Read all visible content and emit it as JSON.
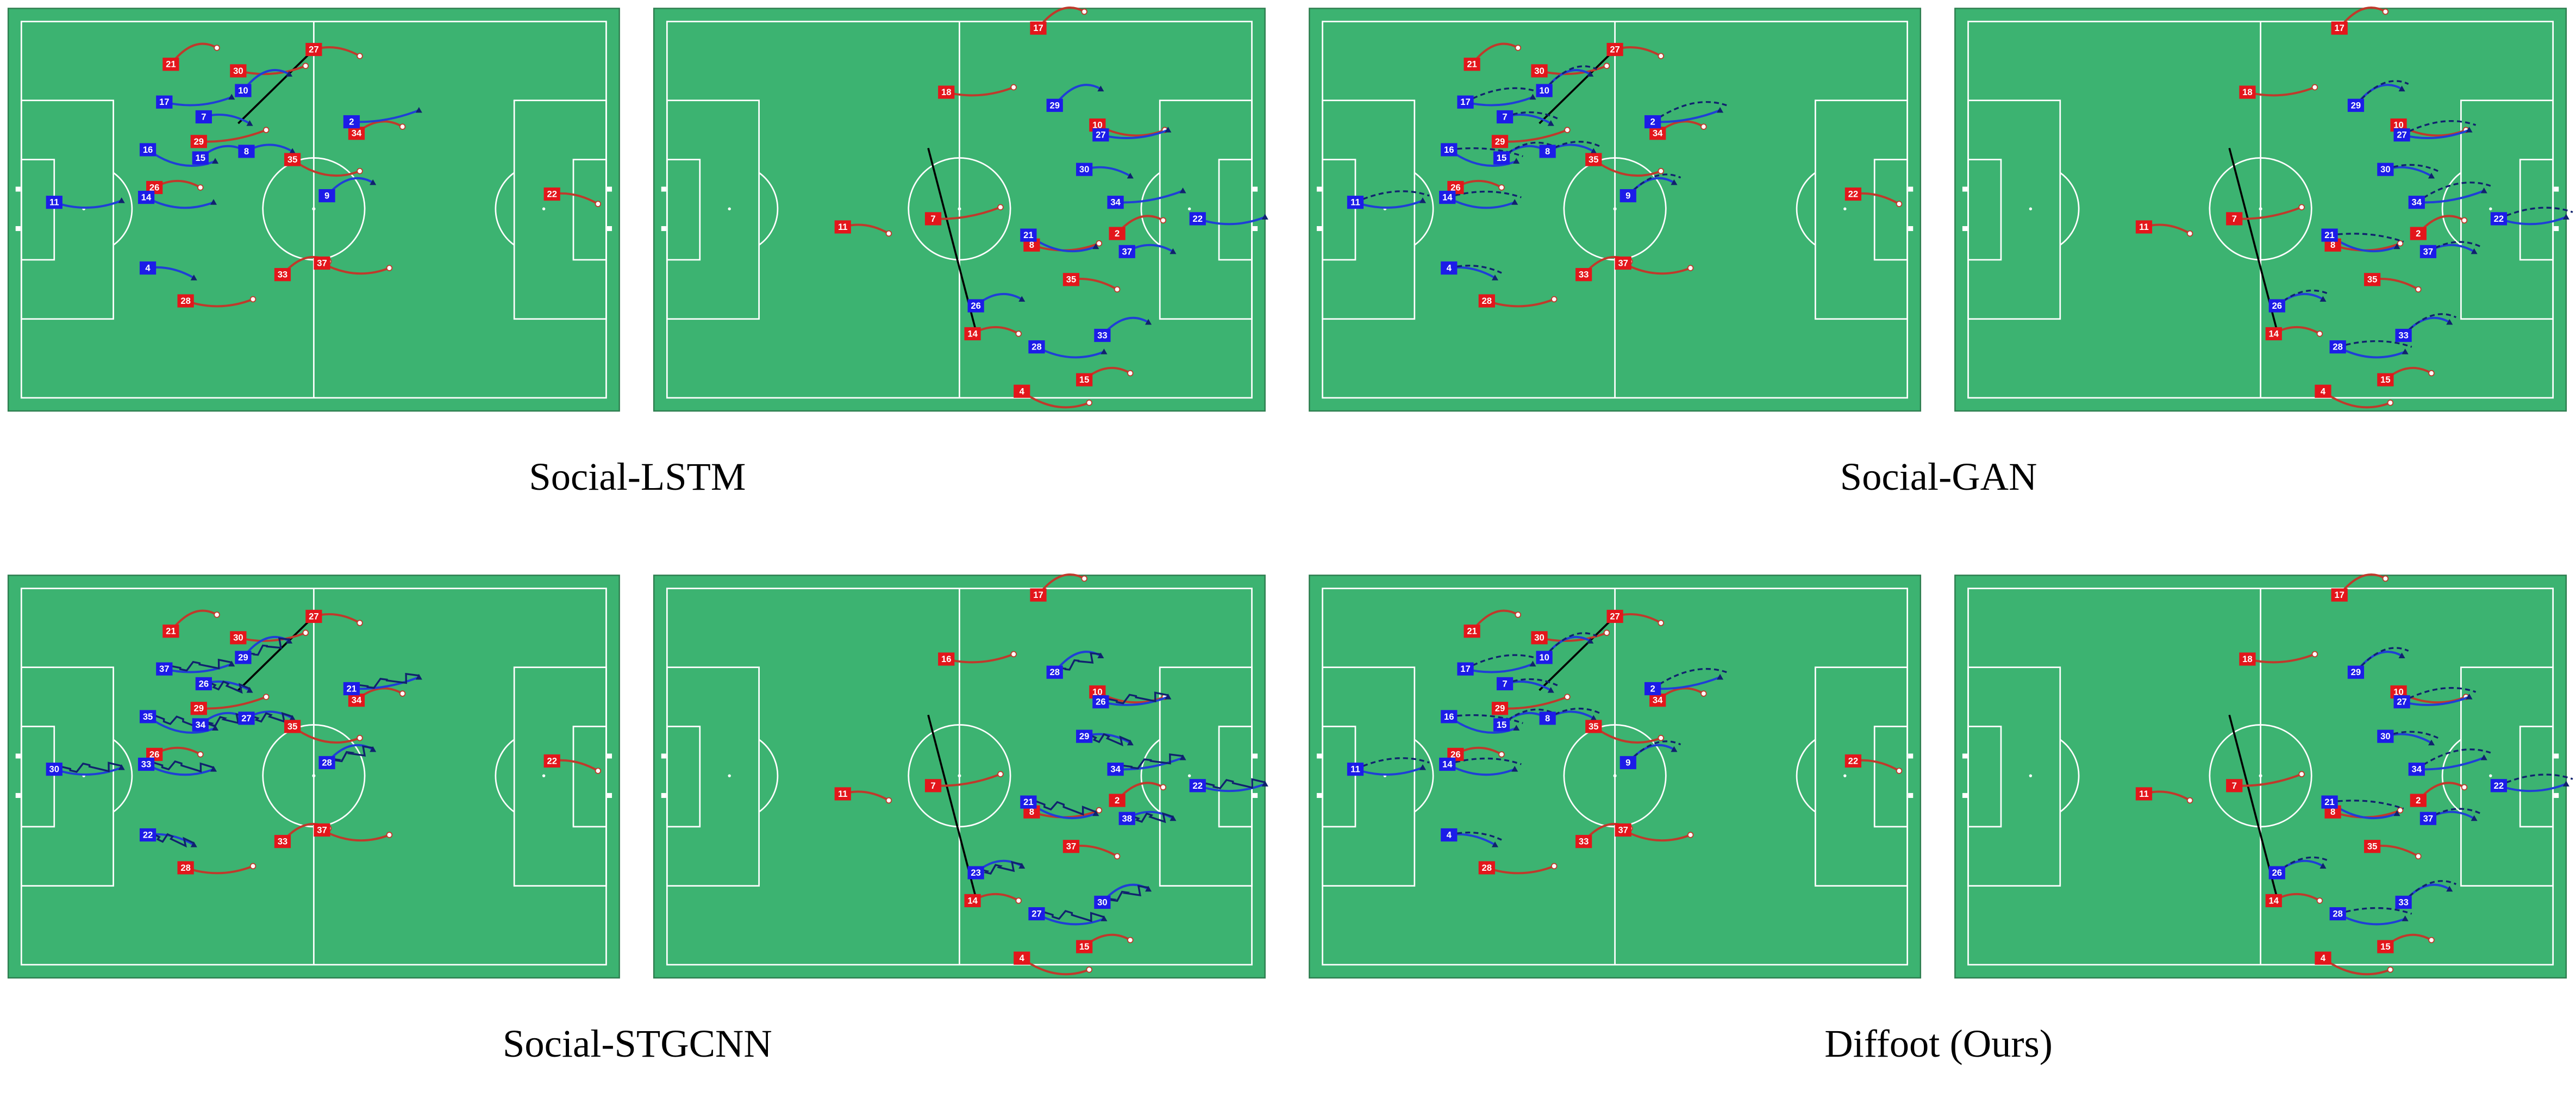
{
  "figure": {
    "panels": [
      {
        "caption": "Social-LSTM",
        "pitches": [
          {
            "red": [
              "21",
              "30",
              "27",
              "29",
              "26",
              "35",
              "34",
              "37",
              "33",
              "28",
              "22"
            ],
            "blue": [
              "10",
              "17",
              "7",
              "2",
              "8",
              "16",
              "15",
              "14",
              "9",
              "11",
              "4"
            ]
          },
          {
            "red": [
              "17",
              "18",
              "11",
              "7",
              "14",
              "4",
              "15",
              "10",
              "2",
              "8",
              "35"
            ],
            "blue": [
              "29",
              "27",
              "30",
              "34",
              "37",
              "21",
              "26",
              "28",
              "33",
              "22"
            ]
          }
        ]
      },
      {
        "caption": "Social-GAN",
        "pitches": [
          {
            "red": [
              "21",
              "30",
              "27",
              "29",
              "26",
              "35",
              "34",
              "37",
              "33",
              "28",
              "22"
            ],
            "blue": [
              "10",
              "17",
              "7",
              "2",
              "8",
              "16",
              "15",
              "14",
              "9",
              "11",
              "4"
            ]
          },
          {
            "red": [
              "17",
              "18",
              "11",
              "7",
              "14",
              "4",
              "15",
              "10",
              "2",
              "8",
              "35"
            ],
            "blue": [
              "29",
              "27",
              "30",
              "34",
              "37",
              "21",
              "26",
              "28",
              "33",
              "22"
            ]
          }
        ]
      },
      {
        "caption": "Social-STGCNN",
        "pitches": [
          {
            "red": [
              "21",
              "30",
              "27",
              "29",
              "26",
              "35",
              "34",
              "37",
              "33",
              "28",
              "22"
            ],
            "blue": [
              "29",
              "37",
              "26",
              "21",
              "27",
              "35",
              "34",
              "33",
              "28",
              "30",
              "22"
            ]
          },
          {
            "red": [
              "17",
              "16",
              "11",
              "7",
              "14",
              "4",
              "15",
              "10",
              "2",
              "8",
              "37"
            ],
            "blue": [
              "28",
              "26",
              "29",
              "34",
              "38",
              "21",
              "23",
              "27",
              "30",
              "22"
            ]
          }
        ]
      },
      {
        "caption": "Diffoot (Ours)",
        "pitches": [
          {
            "red": [
              "21",
              "30",
              "27",
              "29",
              "26",
              "35",
              "34",
              "37",
              "33",
              "28",
              "22"
            ],
            "blue": [
              "10",
              "17",
              "7",
              "2",
              "8",
              "16",
              "15",
              "14",
              "9",
              "11",
              "4"
            ]
          },
          {
            "red": [
              "17",
              "18",
              "11",
              "7",
              "14",
              "4",
              "15",
              "10",
              "2",
              "8",
              "35"
            ],
            "blue": [
              "29",
              "27",
              "30",
              "34",
              "37",
              "21",
              "26",
              "28",
              "33",
              "22"
            ]
          }
        ]
      }
    ]
  }
}
